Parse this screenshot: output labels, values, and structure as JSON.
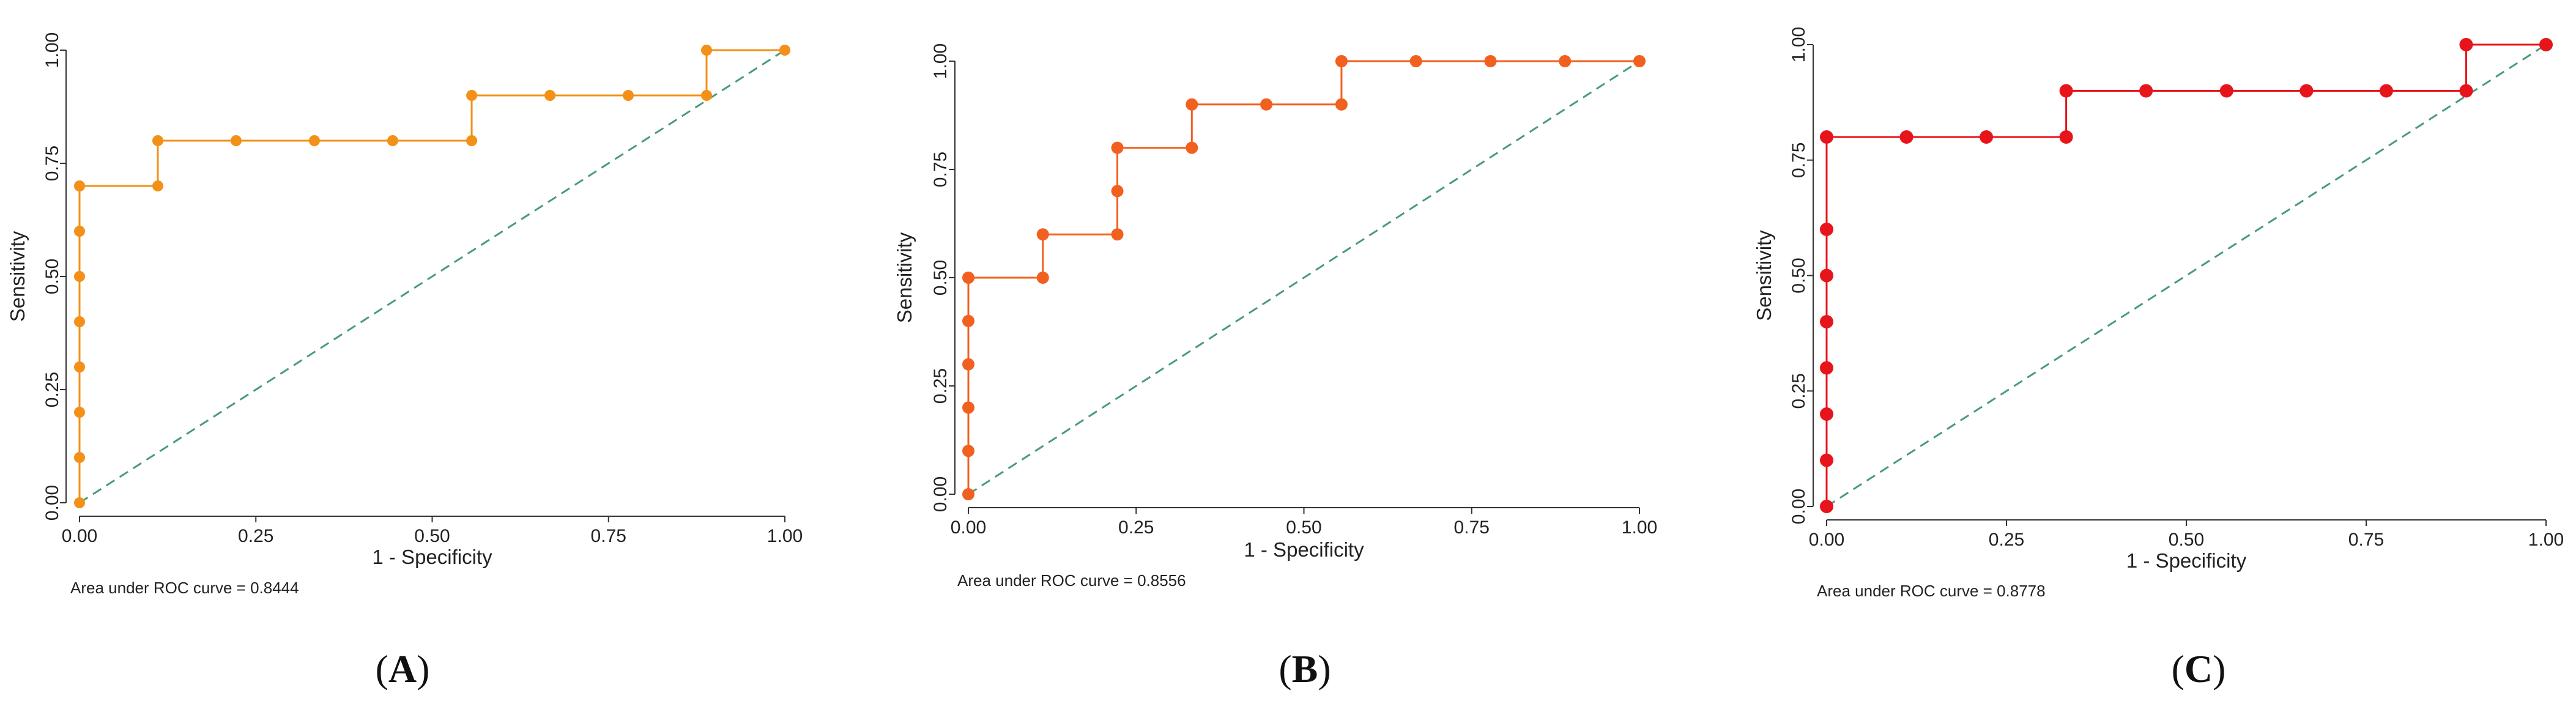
{
  "colors": {
    "A": "#f39017",
    "B": "#f2601f",
    "C": "#e8141b",
    "reference": "#4a9a7f"
  },
  "chart_data": [
    {
      "type": "line",
      "panel": "A",
      "panel_label": "(A)",
      "xlabel": "1 - Specificity",
      "ylabel": "Sensitivity",
      "xlim": [
        0,
        1
      ],
      "ylim": [
        0,
        1
      ],
      "xticks": [
        "0.00",
        "0.25",
        "0.50",
        "0.75",
        "1.00"
      ],
      "yticks": [
        "0.00",
        "0.25",
        "0.50",
        "0.75",
        "1.00"
      ],
      "auc_text": "Area under ROC curve = 0.8444",
      "reference_line": [
        [
          0,
          0
        ],
        [
          1,
          1
        ]
      ],
      "series": [
        {
          "name": "ROC",
          "x": [
            0,
            0,
            0,
            0,
            0,
            0,
            0,
            0,
            0.111,
            0.111,
            0.222,
            0.333,
            0.444,
            0.556,
            0.556,
            0.667,
            0.778,
            0.889,
            0.889,
            1
          ],
          "y": [
            0,
            0.1,
            0.2,
            0.3,
            0.4,
            0.5,
            0.6,
            0.7,
            0.7,
            0.8,
            0.8,
            0.8,
            0.8,
            0.8,
            0.9,
            0.9,
            0.9,
            0.9,
            1.0,
            1.0
          ]
        }
      ]
    },
    {
      "type": "line",
      "panel": "B",
      "panel_label": "(B)",
      "xlabel": "1 - Specificity",
      "ylabel": "Sensitivity",
      "xlim": [
        0,
        1
      ],
      "ylim": [
        0,
        1
      ],
      "xticks": [
        "0.00",
        "0.25",
        "0.50",
        "0.75",
        "1.00"
      ],
      "yticks": [
        "0.00",
        "0.25",
        "0.50",
        "0.75",
        "1.00"
      ],
      "auc_text": "Area under ROC curve = 0.8556",
      "reference_line": [
        [
          0,
          0
        ],
        [
          1,
          1
        ]
      ],
      "series": [
        {
          "name": "ROC",
          "x": [
            0,
            0,
            0,
            0,
            0,
            0,
            0.111,
            0.111,
            0.222,
            0.222,
            0.222,
            0.333,
            0.333,
            0.444,
            0.556,
            0.556,
            0.667,
            0.778,
            0.889,
            1
          ],
          "y": [
            0,
            0.1,
            0.2,
            0.3,
            0.4,
            0.5,
            0.5,
            0.6,
            0.6,
            0.7,
            0.8,
            0.8,
            0.9,
            0.9,
            0.9,
            1.0,
            1.0,
            1.0,
            1.0,
            1.0
          ]
        }
      ]
    },
    {
      "type": "line",
      "panel": "C",
      "panel_label": "(C)",
      "xlabel": "1 - Specificity",
      "ylabel": "Sensitivity",
      "xlim": [
        0,
        1
      ],
      "ylim": [
        0,
        1
      ],
      "xticks": [
        "0.00",
        "0.25",
        "0.50",
        "0.75",
        "1.00"
      ],
      "yticks": [
        "0.00",
        "0.25",
        "0.50",
        "0.75",
        "1.00"
      ],
      "auc_text": "Area under ROC curve = 0.8778",
      "reference_line": [
        [
          0,
          0
        ],
        [
          1,
          1
        ]
      ],
      "series": [
        {
          "name": "ROC",
          "x": [
            0,
            0,
            0,
            0,
            0,
            0,
            0,
            0,
            0.111,
            0.222,
            0.333,
            0.333,
            0.444,
            0.556,
            0.667,
            0.778,
            0.889,
            0.889,
            1
          ],
          "y": [
            0,
            0.1,
            0.2,
            0.3,
            0.4,
            0.5,
            0.6,
            0.8,
            0.8,
            0.8,
            0.8,
            0.9,
            0.9,
            0.9,
            0.9,
            0.9,
            0.9,
            1.0,
            1.0
          ]
        }
      ]
    }
  ]
}
